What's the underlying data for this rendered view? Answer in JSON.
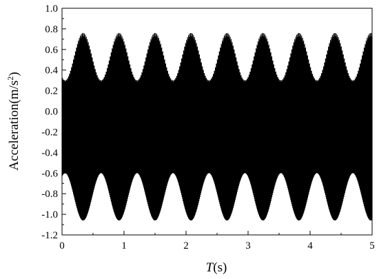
{
  "chart_data": {
    "type": "line",
    "title": "",
    "xlabel_italic": "T",
    "xlabel_rest": "(s)",
    "ylabel_main": "Acceleration(m/s",
    "ylabel_sup": "2",
    "ylabel_close": ")",
    "xlim": [
      0,
      5
    ],
    "ylim": [
      -1.2,
      1.0
    ],
    "x_ticks": [
      "0",
      "1",
      "2",
      "3",
      "4",
      "5"
    ],
    "y_ticks": [
      "1.0",
      "0.8",
      "0.6",
      "0.4",
      "0.2",
      "0.0",
      "-0.2",
      "-0.4",
      "-0.6",
      "-0.8",
      "-1.0",
      "-1.2"
    ],
    "grid": false,
    "legend": "none",
    "series": [
      {
        "color": "#000000",
        "description_values": {
          "mean": -0.15,
          "envelope_period_s": 0.58,
          "outer_max": 0.76,
          "outer_min": -1.06,
          "outer_envelope_upper_range": [
            0.3,
            0.76
          ],
          "outer_envelope_lower_range": [
            -1.06,
            -0.6
          ],
          "dense_band_upper_range": [
            0.2,
            0.55
          ],
          "dense_band_lower_range": [
            -0.32,
            -0.24
          ]
        }
      }
    ]
  }
}
